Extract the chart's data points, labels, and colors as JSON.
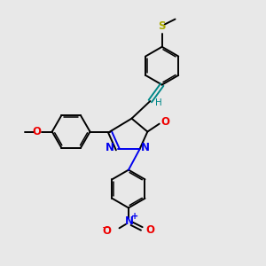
{
  "bg_color": "#e8e8e8",
  "bond_color": "#000000",
  "N_color": "#0000ee",
  "O_color": "#ee0000",
  "S_color": "#aaaa00",
  "teal_color": "#008888",
  "figsize": [
    3.0,
    3.0
  ],
  "dpi": 100,
  "xlim": [
    0,
    10
  ],
  "ylim": [
    0,
    10
  ],
  "r_hex": 0.72,
  "lw": 1.4,
  "lw2": 1.0,
  "font_size": 8.5
}
